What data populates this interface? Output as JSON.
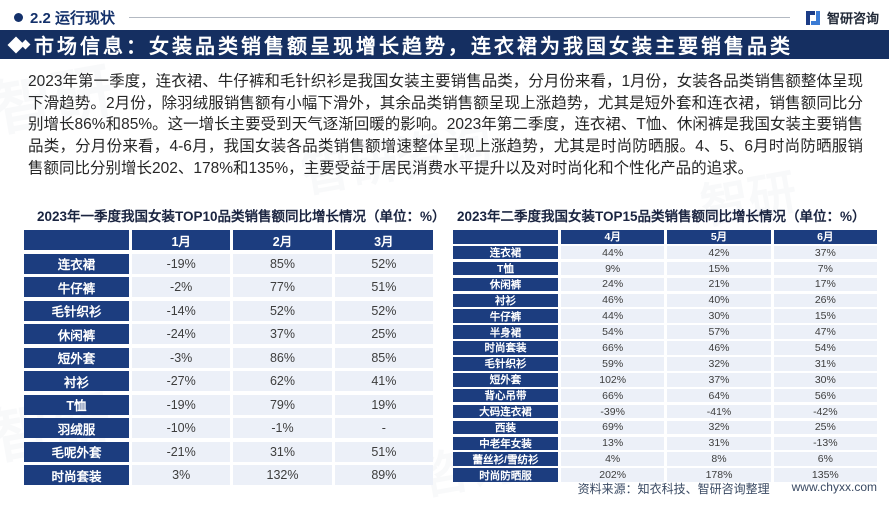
{
  "header": {
    "section": "2.2 运行现状",
    "logo_text": "智研咨询"
  },
  "title_bar": {
    "text": "市场信息：女装品类销售额呈现增长趋势，连衣裙为我国女装主要销售品类"
  },
  "paragraph": "2023年第一季度，连衣裙、牛仔裤和毛针织衫是我国女装主要销售品类，分月份来看，1月份，女装各品类销售额整体呈现下滑趋势。2月份，除羽绒服销售额有小幅下滑外，其余品类销售额呈现上涨趋势，尤其是短外套和连衣裙，销售额同比分别增长86%和85%。这一增长主要受到天气逐渐回暖的影响。2023年第二季度，连衣裙、T恤、休闲裤是我国女装主要销售品类，分月份来看，4-6月，我国女装各品类销售额增速整体呈现上涨趋势，尤其是时尚防晒服。4、5、6月时尚防晒服销售额同比分别增长202、178%和135%，主要受益于居民消费水平提升以及对时尚化和个性化产品的追求。",
  "tables": [
    {
      "title": "2023年一季度我国女装TOP10品类销售额同比增长情况（单位：%）",
      "columns": [
        "1月",
        "2月",
        "3月"
      ],
      "rows": [
        {
          "label": "连衣裙",
          "values": [
            "-19%",
            "85%",
            "52%"
          ]
        },
        {
          "label": "牛仔裤",
          "values": [
            "-2%",
            "77%",
            "51%"
          ]
        },
        {
          "label": "毛针织衫",
          "values": [
            "-14%",
            "52%",
            "52%"
          ]
        },
        {
          "label": "休闲裤",
          "values": [
            "-24%",
            "37%",
            "25%"
          ]
        },
        {
          "label": "短外套",
          "values": [
            "-3%",
            "86%",
            "85%"
          ]
        },
        {
          "label": "衬衫",
          "values": [
            "-27%",
            "62%",
            "41%"
          ]
        },
        {
          "label": "T恤",
          "values": [
            "-19%",
            "79%",
            "19%"
          ]
        },
        {
          "label": "羽绒服",
          "values": [
            "-10%",
            "-1%",
            "-"
          ]
        },
        {
          "label": "毛呢外套",
          "values": [
            "-21%",
            "31%",
            "51%"
          ]
        },
        {
          "label": "时尚套装",
          "values": [
            "3%",
            "132%",
            "89%"
          ]
        }
      ]
    },
    {
      "title": "2023年二季度我国女装TOP15品类销售额同比增长情况（单位：%）",
      "columns": [
        "4月",
        "5月",
        "6月"
      ],
      "rows": [
        {
          "label": "连衣裙",
          "values": [
            "44%",
            "42%",
            "37%"
          ]
        },
        {
          "label": "T恤",
          "values": [
            "9%",
            "15%",
            "7%"
          ]
        },
        {
          "label": "休闲裤",
          "values": [
            "24%",
            "21%",
            "17%"
          ]
        },
        {
          "label": "衬衫",
          "values": [
            "46%",
            "40%",
            "26%"
          ]
        },
        {
          "label": "牛仔裤",
          "values": [
            "44%",
            "30%",
            "15%"
          ]
        },
        {
          "label": "半身裙",
          "values": [
            "54%",
            "57%",
            "47%"
          ]
        },
        {
          "label": "时尚套装",
          "values": [
            "66%",
            "46%",
            "54%"
          ]
        },
        {
          "label": "毛针织衫",
          "values": [
            "59%",
            "32%",
            "31%"
          ]
        },
        {
          "label": "短外套",
          "values": [
            "102%",
            "37%",
            "30%"
          ]
        },
        {
          "label": "背心吊带",
          "values": [
            "66%",
            "64%",
            "56%"
          ]
        },
        {
          "label": "大码连衣裙",
          "values": [
            "-39%",
            "-41%",
            "-42%"
          ]
        },
        {
          "label": "西装",
          "values": [
            "69%",
            "32%",
            "25%"
          ]
        },
        {
          "label": "中老年女装",
          "values": [
            "13%",
            "31%",
            "-13%"
          ]
        },
        {
          "label": "蕾丝衫/雪纺衫",
          "values": [
            "4%",
            "8%",
            "6%"
          ]
        },
        {
          "label": "时尚防晒服",
          "values": [
            "202%",
            "178%",
            "135%"
          ]
        }
      ]
    }
  ],
  "footer": {
    "source": "资料来源：知衣科技、智研咨询整理",
    "site": "www.chyxx.com"
  }
}
